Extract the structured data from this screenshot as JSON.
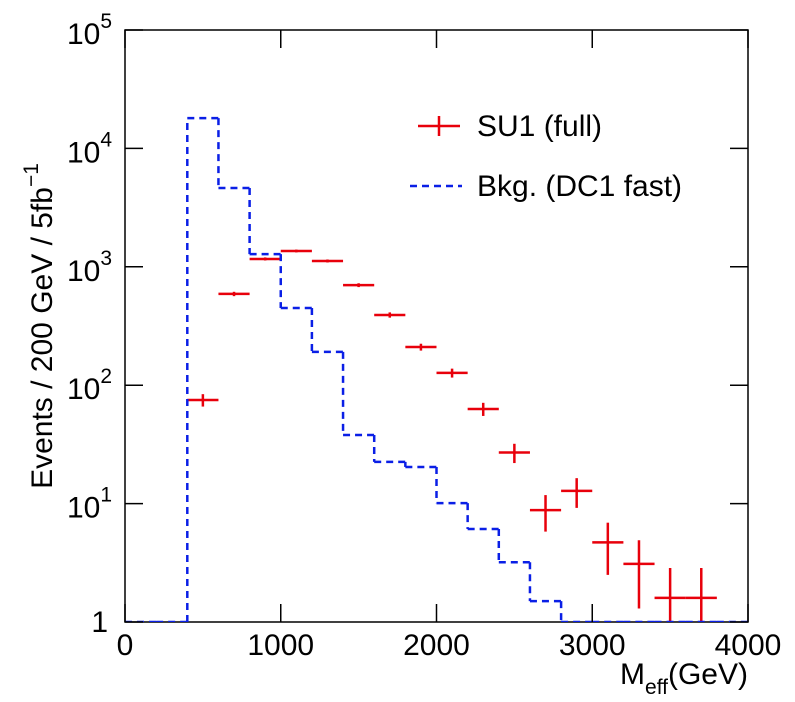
{
  "chart_data": {
    "type": "histogram",
    "bins": [
      0,
      200,
      400,
      600,
      800,
      1000,
      1200,
      1400,
      1600,
      1800,
      2000,
      2200,
      2400,
      2600,
      2800,
      3000,
      3200,
      3400,
      3600,
      3800,
      4000
    ],
    "series": [
      {
        "name": "SU1 (full)",
        "color": "#e8000b",
        "style": "points",
        "values": [
          null,
          null,
          75,
          590,
          1165,
          1360,
          1120,
          700,
          392,
          210,
          127,
          63,
          27,
          8.8,
          12.8,
          4.7,
          3.1,
          1.6,
          1.6,
          null
        ],
        "errors": [
          null,
          null,
          9,
          25,
          35,
          37,
          33,
          26,
          20,
          14,
          11,
          8,
          5,
          3,
          3.6,
          2.2,
          1.8,
          1.26,
          1.26,
          null
        ]
      },
      {
        "name": "Bkg. (DC1 fast)",
        "color": "#0a1fe6",
        "style": "step",
        "values": [
          0,
          0,
          18000,
          4630,
          1280,
          449,
          191,
          38,
          22.5,
          20.4,
          10.1,
          6.1,
          3.2,
          1.5,
          0,
          0,
          0,
          0,
          0,
          0
        ]
      }
    ],
    "log_y": true,
    "xlim": [
      0,
      4000
    ],
    "xticks": [
      0,
      1000,
      2000,
      3000,
      4000
    ],
    "ylim": [
      1,
      100000
    ],
    "yticks": [
      1,
      {
        "value": 10,
        "label": [
          "10",
          "1"
        ]
      },
      {
        "value": 100,
        "label": [
          "10",
          "2"
        ]
      },
      {
        "value": 1000,
        "label": [
          "10",
          "3"
        ]
      },
      {
        "value": 10000,
        "label": [
          "10",
          "4"
        ]
      },
      {
        "value": 100000,
        "label": [
          "10",
          "5"
        ]
      }
    ],
    "y_label": [
      "Events / 200 GeV / 5fb",
      "−1"
    ],
    "x_label": [
      "M",
      "eff",
      "(GeV)"
    ]
  }
}
